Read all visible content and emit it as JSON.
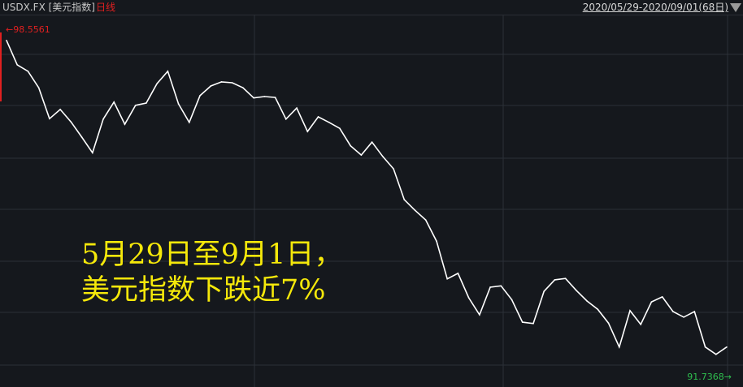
{
  "header": {
    "symbol": "USDX.FX [美元指数]",
    "period": "日线",
    "date_range": "2020/05/29-2020/09/01(68日)"
  },
  "annotation": {
    "line1": "5月29日至9月1日，",
    "line2": "美元指数下跌近7%"
  },
  "colors": {
    "background": "#15181d",
    "line": "#ffffff",
    "high": "#e02020",
    "low": "#2fbf4f",
    "annotation": "#f5e80a"
  },
  "chart_data": {
    "type": "line",
    "title": "USDX.FX [美元指数]",
    "x_range": [
      "2020/05/29",
      "2020/09/01"
    ],
    "count": 68,
    "high_label": "←98.5561",
    "low_label": "91.7368→",
    "high": 98.5561,
    "low": 91.7368,
    "grid": true,
    "values": [
      98.56,
      98.03,
      97.89,
      97.53,
      96.86,
      97.06,
      96.79,
      96.46,
      96.12,
      96.85,
      97.22,
      96.74,
      97.15,
      97.2,
      97.62,
      97.89,
      97.18,
      96.78,
      97.36,
      97.57,
      97.66,
      97.64,
      97.53,
      97.31,
      97.34,
      97.32,
      96.85,
      97.09,
      96.58,
      96.9,
      96.78,
      96.65,
      96.27,
      96.07,
      96.35,
      96.04,
      95.77,
      95.1,
      94.87,
      94.66,
      94.2,
      93.38,
      93.5,
      92.97,
      92.6,
      93.2,
      93.23,
      92.93,
      92.44,
      92.41,
      93.11,
      93.36,
      93.39,
      93.13,
      92.9,
      92.72,
      92.42,
      91.9,
      92.69,
      92.39,
      92.88,
      92.99,
      92.67,
      92.55,
      92.67,
      91.9,
      91.74,
      91.9
    ]
  }
}
